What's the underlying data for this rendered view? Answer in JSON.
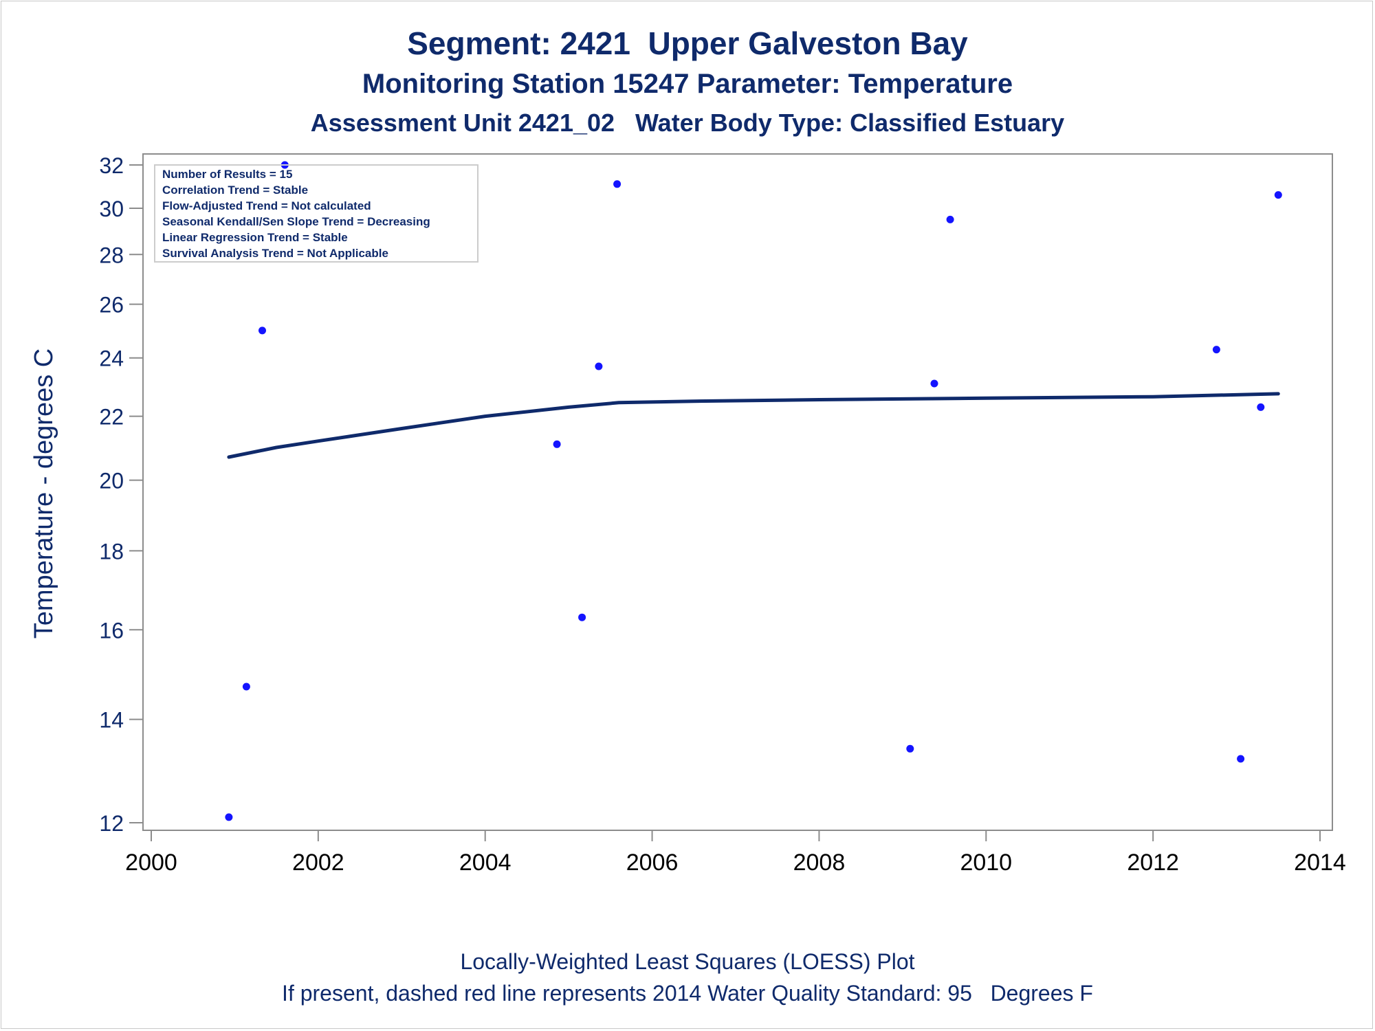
{
  "titles": {
    "line1": "Segment: 2421  Upper Galveston Bay",
    "line2": "Monitoring Station 15247 Parameter: Temperature",
    "line3": "Assessment Unit 2421_02   Water Body Type: Classified Estuary"
  },
  "footnotes": {
    "line1": "Locally-Weighted Least Squares (LOESS) Plot",
    "line2": "If present, dashed red line represents 2014 Water Quality Standard: 95   Degrees F"
  },
  "stats_box": [
    "Number of Results = 15",
    "Correlation Trend = Stable",
    "Flow-Adjusted Trend = Not calculated",
    "Seasonal Kendall/Sen Slope Trend = Decreasing",
    "Linear Regression Trend = Stable",
    "Survival Analysis Trend = Not Applicable"
  ],
  "colors": {
    "text": "#0f2a6b",
    "points": "#1414ff",
    "loess": "#0f2a6b",
    "axis": "#8c8c8c",
    "ticks": "#000000"
  },
  "chart_data": {
    "type": "scatter",
    "ylabel": "Temperature - degrees C",
    "xlabel": "",
    "yscale": "log",
    "xlim": [
      2000,
      2014
    ],
    "ylim": [
      12,
      32
    ],
    "x_ticks": [
      "2000",
      "2002",
      "2004",
      "2006",
      "2008",
      "2010",
      "2012",
      "2014"
    ],
    "y_ticks": [
      "12",
      "14",
      "16",
      "18",
      "20",
      "22",
      "24",
      "26",
      "28",
      "30",
      "32"
    ],
    "legend_position": "top-left",
    "grid": false,
    "series": [
      {
        "kind": "points",
        "x": [
          2000.93,
          2001.14,
          2001.33,
          2001.6,
          2004.86,
          2005.16,
          2005.36,
          2005.58,
          2009.09,
          2009.38,
          2009.57,
          2012.76,
          2013.05,
          2013.29,
          2013.5
        ],
        "y": [
          12.1,
          14.7,
          25.0,
          32.0,
          21.1,
          16.3,
          23.7,
          31.1,
          13.4,
          23.1,
          29.5,
          24.3,
          13.2,
          22.3,
          30.6
        ]
      },
      {
        "kind": "loess",
        "x": [
          2000.93,
          2001.5,
          2002.0,
          2003.0,
          2004.0,
          2005.0,
          2005.6,
          2006.5,
          2008.0,
          2010.0,
          2012.0,
          2013.5
        ],
        "y": [
          20.7,
          21.0,
          21.2,
          21.6,
          22.0,
          22.3,
          22.45,
          22.5,
          22.55,
          22.6,
          22.65,
          22.75
        ]
      }
    ]
  }
}
